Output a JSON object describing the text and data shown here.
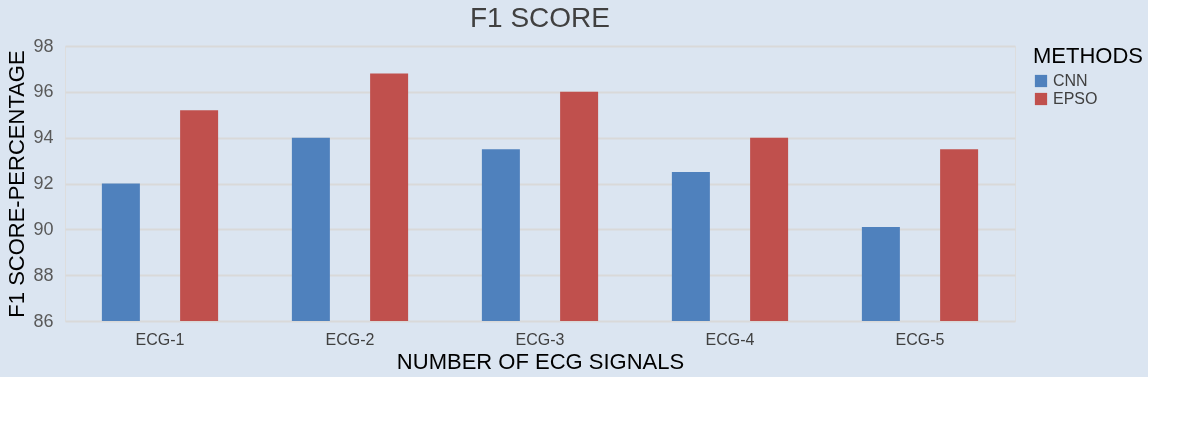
{
  "chart_data": {
    "type": "bar",
    "title": "F1 SCORE",
    "xlabel": "NUMBER OF ECG SIGNALS",
    "ylabel": "F1 SCORE-PERCENTAGE",
    "legend_title": "METHODS",
    "categories": [
      "ECG-1",
      "ECG-2",
      "ECG-3",
      "ECG-4",
      "ECG-5"
    ],
    "series": [
      {
        "name": "CNN",
        "color": "#4f81bd",
        "values": [
          92.0,
          94.0,
          93.5,
          92.5,
          90.1
        ]
      },
      {
        "name": "EPSO",
        "color": "#c0504d",
        "values": [
          95.2,
          96.8,
          96.0,
          94.0,
          93.5
        ]
      }
    ],
    "ylim": [
      86,
      98
    ],
    "yticks": [
      86,
      88,
      90,
      92,
      94,
      96,
      98
    ],
    "grid": "y",
    "legend": "right"
  }
}
